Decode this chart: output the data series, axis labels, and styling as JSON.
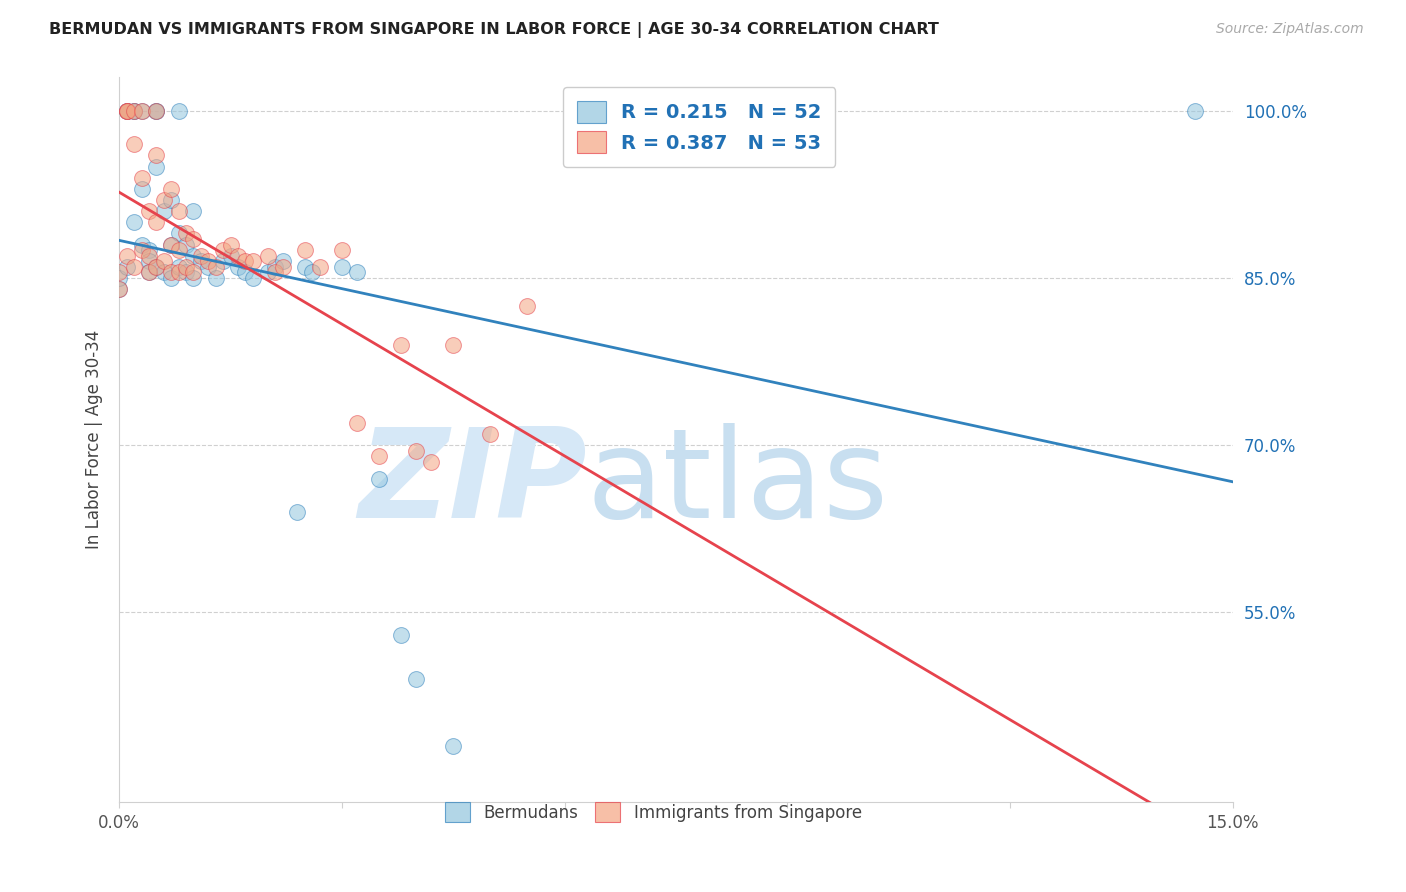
{
  "title": "BERMUDAN VS IMMIGRANTS FROM SINGAPORE IN LABOR FORCE | AGE 30-34 CORRELATION CHART",
  "source": "Source: ZipAtlas.com",
  "ylabel": "In Labor Force | Age 30-34",
  "yticks": [
    100.0,
    85.0,
    70.0,
    55.0
  ],
  "ytick_labels": [
    "100.0%",
    "85.0%",
    "70.0%",
    "55.0%"
  ],
  "xmin": 0.0,
  "xmax": 15.0,
  "ymin": 38.0,
  "ymax": 103.0,
  "blue_R": 0.215,
  "blue_N": 52,
  "pink_R": 0.387,
  "pink_N": 53,
  "blue_color": "#92c5de",
  "pink_color": "#f4a582",
  "blue_line_color": "#3182bd",
  "pink_line_color": "#e6434d",
  "legend_text_color": "#2171b5",
  "watermark_color": "#d6e8f7",
  "blue_scatter_x": [
    0.0,
    0.0,
    0.1,
    0.1,
    0.1,
    0.2,
    0.2,
    0.2,
    0.3,
    0.3,
    0.3,
    0.4,
    0.4,
    0.4,
    0.5,
    0.5,
    0.5,
    0.5,
    0.6,
    0.6,
    0.7,
    0.7,
    0.7,
    0.8,
    0.8,
    0.8,
    0.9,
    0.9,
    1.0,
    1.0,
    1.0,
    1.1,
    1.2,
    1.3,
    1.4,
    1.5,
    1.6,
    1.7,
    1.8,
    2.0,
    2.1,
    2.2,
    2.4,
    2.5,
    2.6,
    3.0,
    3.2,
    3.5,
    3.8,
    4.0,
    4.5,
    14.5
  ],
  "blue_scatter_y": [
    84.0,
    85.0,
    100.0,
    100.0,
    86.0,
    100.0,
    100.0,
    90.0,
    100.0,
    93.0,
    88.0,
    87.5,
    86.5,
    85.5,
    100.0,
    100.0,
    95.0,
    86.0,
    91.0,
    85.5,
    92.0,
    88.0,
    85.0,
    100.0,
    89.0,
    86.0,
    88.0,
    85.5,
    91.0,
    87.0,
    85.0,
    86.5,
    86.0,
    85.0,
    86.5,
    87.0,
    86.0,
    85.5,
    85.0,
    85.5,
    86.0,
    86.5,
    64.0,
    86.0,
    85.5,
    86.0,
    85.5,
    67.0,
    53.0,
    49.0,
    43.0,
    100.0
  ],
  "pink_scatter_x": [
    0.0,
    0.0,
    0.1,
    0.1,
    0.1,
    0.1,
    0.2,
    0.2,
    0.2,
    0.3,
    0.3,
    0.3,
    0.4,
    0.4,
    0.4,
    0.5,
    0.5,
    0.5,
    0.5,
    0.6,
    0.6,
    0.7,
    0.7,
    0.7,
    0.8,
    0.8,
    0.8,
    0.9,
    0.9,
    1.0,
    1.0,
    1.1,
    1.2,
    1.3,
    1.4,
    1.5,
    1.6,
    1.7,
    1.8,
    2.0,
    2.1,
    2.2,
    2.5,
    2.7,
    3.0,
    3.2,
    3.5,
    3.8,
    4.0,
    4.2,
    4.5,
    5.0,
    5.5
  ],
  "pink_scatter_y": [
    84.0,
    85.5,
    100.0,
    100.0,
    100.0,
    87.0,
    100.0,
    97.0,
    86.0,
    100.0,
    94.0,
    87.5,
    91.0,
    87.0,
    85.5,
    100.0,
    96.0,
    90.0,
    86.0,
    92.0,
    86.5,
    93.0,
    88.0,
    85.5,
    91.0,
    87.5,
    85.5,
    89.0,
    86.0,
    88.5,
    85.5,
    87.0,
    86.5,
    86.0,
    87.5,
    88.0,
    87.0,
    86.5,
    86.5,
    87.0,
    85.5,
    86.0,
    87.5,
    86.0,
    87.5,
    72.0,
    69.0,
    79.0,
    69.5,
    68.5,
    79.0,
    71.0,
    82.5
  ]
}
